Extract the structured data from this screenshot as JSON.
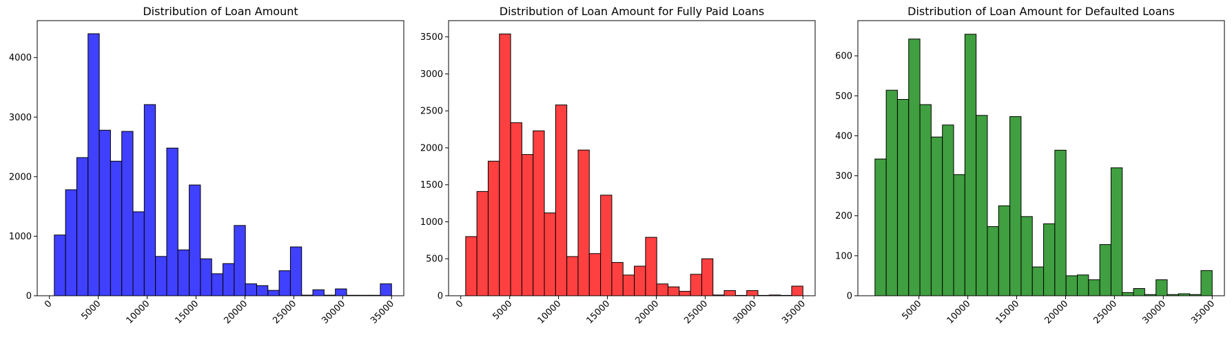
{
  "chart_data": [
    {
      "type": "bar",
      "title": "Distribution of Loan Amount",
      "xlabel": "",
      "ylabel": "",
      "color": "#4040ff",
      "xlim": [
        -1250,
        36250
      ],
      "ylim": [
        0,
        4620
      ],
      "xticks": [
        0,
        5000,
        10000,
        15000,
        20000,
        25000,
        30000,
        35000
      ],
      "xtick_labels": [
        "0",
        "5000",
        "10000",
        "15000",
        "20000",
        "25000",
        "30000",
        "35000"
      ],
      "yticks": [
        0,
        1000,
        2000,
        3000,
        4000
      ],
      "ytick_labels": [
        "0",
        "1000",
        "2000",
        "3000",
        "4000"
      ],
      "bin_start": 500,
      "bin_width": 1150,
      "values": [
        1020,
        1780,
        2320,
        4400,
        2780,
        2260,
        2760,
        1410,
        3210,
        660,
        2480,
        770,
        1860,
        620,
        370,
        540,
        1180,
        200,
        170,
        90,
        420,
        820,
        10,
        100,
        10,
        115,
        8,
        8,
        8,
        200
      ]
    },
    {
      "type": "bar",
      "title": "Distribution of Loan Amount for Fully Paid Loans",
      "xlabel": "",
      "ylabel": "",
      "color": "#ff4040",
      "xlim": [
        -1250,
        36250
      ],
      "ylim": [
        0,
        3720
      ],
      "xticks": [
        0,
        5000,
        10000,
        15000,
        20000,
        25000,
        30000,
        35000
      ],
      "xtick_labels": [
        "0",
        "5000",
        "10000",
        "15000",
        "20000",
        "25000",
        "30000",
        "35000"
      ],
      "yticks": [
        0,
        500,
        1000,
        1500,
        2000,
        2500,
        3000,
        3500
      ],
      "ytick_labels": [
        "0",
        "500",
        "1000",
        "1500",
        "2000",
        "2500",
        "3000",
        "3500"
      ],
      "bin_start": 500,
      "bin_width": 1150,
      "values": [
        800,
        1410,
        1820,
        3540,
        2340,
        1910,
        2230,
        1120,
        2580,
        530,
        1970,
        570,
        1360,
        450,
        280,
        400,
        790,
        160,
        120,
        60,
        290,
        500,
        10,
        70,
        5,
        70,
        5,
        10,
        5,
        130
      ]
    },
    {
      "type": "bar",
      "title": "Distribution of Loan Amount for Defaulted Loans",
      "xlabel": "",
      "ylabel": "",
      "color": "#409f40",
      "xlim": [
        -1250,
        36250
      ],
      "ylim": [
        0,
        688
      ],
      "xticks": [
        5000,
        10000,
        15000,
        20000,
        25000,
        30000,
        35000
      ],
      "xtick_labels": [
        "5000",
        "10000",
        "15000",
        "20000",
        "25000",
        "30000",
        "35000"
      ],
      "yticks": [
        0,
        100,
        200,
        300,
        400,
        500,
        600
      ],
      "ytick_labels": [
        "0",
        "100",
        "200",
        "300",
        "400",
        "500",
        "600"
      ],
      "bin_start": 500,
      "bin_width": 1150,
      "values": [
        342,
        514,
        491,
        642,
        478,
        397,
        427,
        303,
        654,
        451,
        173,
        225,
        448,
        198,
        72,
        180,
        364,
        50,
        52,
        40,
        128,
        320,
        8,
        18,
        3,
        40,
        3,
        5,
        3,
        63
      ]
    }
  ]
}
